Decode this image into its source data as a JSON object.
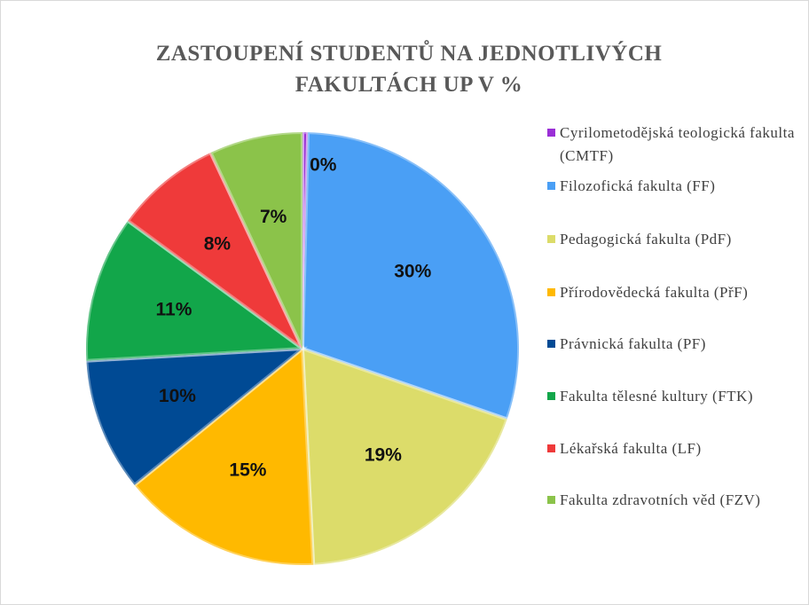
{
  "chart_data": {
    "type": "pie",
    "title": "ZASTOUPENÍ STUDENTŮ NA JEDNOTLIVÝCH FAKULTÁCH UP V %",
    "categories": [
      "Cyrilometodějská teologická fakulta (CMTF)",
      "Filozofická fakulta (FF)",
      "Pedagogická fakulta (PdF)",
      "Přírodovědecká fakulta (PřF)",
      "Právnická fakulta (PF)",
      "Fakulta tělesné kultury (FTK)",
      "Lékařská fakulta (LF)",
      "Fakulta zdravotních věd (FZV)"
    ],
    "values": [
      0.4,
      30,
      19,
      15,
      10,
      11,
      8,
      7
    ],
    "value_labels": [
      "0%",
      "30%",
      "19%",
      "15%",
      "10%",
      "11%",
      "8%",
      "7%"
    ],
    "colors": [
      "#9a2fd6",
      "#4a9ff5",
      "#dcdc6a",
      "#ffb900",
      "#004a94",
      "#12a64a",
      "#ef3a3a",
      "#8bc34a"
    ],
    "legend": "right"
  }
}
